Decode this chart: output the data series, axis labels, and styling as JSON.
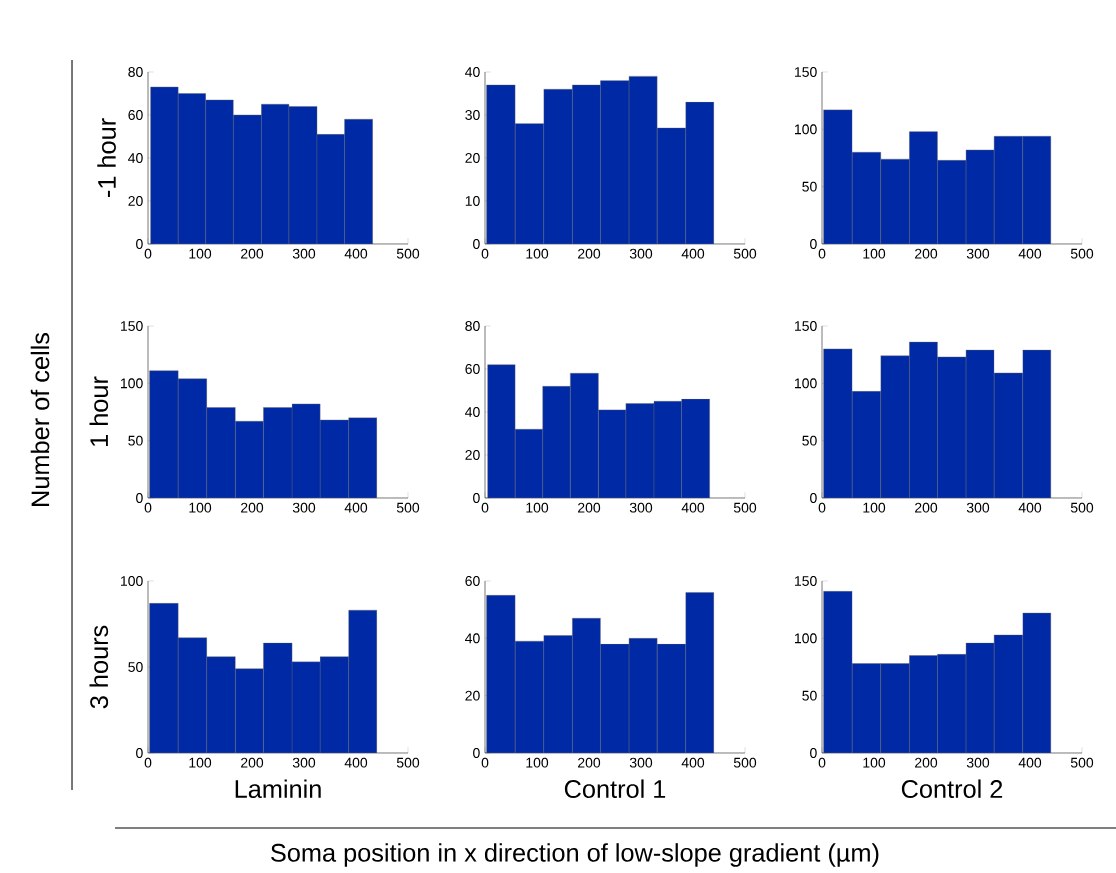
{
  "chart_data": [
    {
      "type": "histogram",
      "ylabel": "-1 hour",
      "annotations": [
        "Number of cells",
        "Soma position in x direction of low-slope gradient (µm)"
      ],
      "color": "#0029a5",
      "bins": [
        5,
        58,
        111,
        164,
        218,
        271,
        325,
        378,
        432
      ],
      "values": [
        73,
        70,
        67,
        60,
        65,
        64,
        51,
        58
      ],
      "xlim": [
        0,
        500
      ],
      "xticks": [
        0,
        100,
        200,
        300,
        400,
        500
      ],
      "ylim": [
        0,
        80
      ],
      "yticks": [
        0,
        20,
        40,
        60,
        80
      ]
    },
    {
      "type": "histogram",
      "color": "#0029a5",
      "bins": [
        3,
        58,
        113,
        168,
        222,
        277,
        331,
        386,
        440
      ],
      "values": [
        37,
        28,
        36,
        37,
        38,
        39,
        27,
        33
      ],
      "xlim": [
        0,
        500
      ],
      "xticks": [
        0,
        100,
        200,
        300,
        400,
        500
      ],
      "ylim": [
        0,
        40
      ],
      "yticks": [
        0,
        10,
        20,
        30,
        40
      ]
    },
    {
      "type": "histogram",
      "color": "#0029a5",
      "bins": [
        3,
        58,
        113,
        168,
        222,
        277,
        331,
        386,
        440
      ],
      "values": [
        117,
        80,
        74,
        98,
        73,
        82,
        94,
        94
      ],
      "xlim": [
        0,
        500
      ],
      "xticks": [
        0,
        100,
        200,
        300,
        400,
        500
      ],
      "ylim": [
        0,
        150
      ],
      "yticks": [
        0,
        50,
        100,
        150
      ]
    },
    {
      "type": "histogram",
      "ylabel": "1 hour",
      "color": "#0029a5",
      "bins": [
        3,
        58,
        113,
        168,
        222,
        277,
        331,
        386,
        440
      ],
      "values": [
        111,
        104,
        79,
        67,
        79,
        82,
        68,
        70
      ],
      "xlim": [
        0,
        500
      ],
      "xticks": [
        0,
        100,
        200,
        300,
        400,
        500
      ],
      "ylim": [
        0,
        150
      ],
      "yticks": [
        0,
        50,
        100,
        150
      ]
    },
    {
      "type": "histogram",
      "color": "#0029a5",
      "bins": [
        5,
        58,
        111,
        164,
        218,
        271,
        325,
        378,
        432
      ],
      "values": [
        62,
        32,
        52,
        58,
        41,
        44,
        45,
        46
      ],
      "xlim": [
        0,
        500
      ],
      "xticks": [
        0,
        100,
        200,
        300,
        400,
        500
      ],
      "ylim": [
        0,
        80
      ],
      "yticks": [
        0,
        20,
        40,
        60,
        80
      ]
    },
    {
      "type": "histogram",
      "color": "#0029a5",
      "bins": [
        3,
        58,
        113,
        168,
        222,
        277,
        331,
        386,
        440
      ],
      "values": [
        130,
        93,
        124,
        136,
        123,
        129,
        109,
        129
      ],
      "xlim": [
        0,
        500
      ],
      "xticks": [
        0,
        100,
        200,
        300,
        400,
        500
      ],
      "ylim": [
        0,
        150
      ],
      "yticks": [
        0,
        50,
        100,
        150
      ]
    },
    {
      "type": "histogram",
      "ylabel": "3 hours",
      "xlabel": "Laminin",
      "color": "#0029a5",
      "bins": [
        3,
        58,
        113,
        168,
        222,
        277,
        331,
        386,
        440
      ],
      "values": [
        87,
        67,
        56,
        49,
        64,
        53,
        56,
        83
      ],
      "xlim": [
        0,
        500
      ],
      "xticks": [
        0,
        100,
        200,
        300,
        400,
        500
      ],
      "ylim": [
        0,
        100
      ],
      "yticks": [
        0,
        50,
        100
      ]
    },
    {
      "type": "histogram",
      "xlabel": "Control 1",
      "color": "#0029a5",
      "bins": [
        3,
        58,
        113,
        168,
        222,
        277,
        331,
        386,
        440
      ],
      "values": [
        55,
        39,
        41,
        47,
        38,
        40,
        38,
        56
      ],
      "xlim": [
        0,
        500
      ],
      "xticks": [
        0,
        100,
        200,
        300,
        400,
        500
      ],
      "ylim": [
        0,
        60
      ],
      "yticks": [
        0,
        20,
        40,
        60
      ]
    },
    {
      "type": "histogram",
      "xlabel": "Control 2",
      "color": "#0029a5",
      "bins": [
        3,
        58,
        113,
        168,
        222,
        277,
        331,
        386,
        440
      ],
      "values": [
        141,
        78,
        78,
        85,
        86,
        96,
        103,
        122
      ],
      "xlim": [
        0,
        500
      ],
      "xticks": [
        0,
        100,
        200,
        300,
        400,
        500
      ],
      "ylim": [
        0,
        150
      ],
      "yticks": [
        0,
        50,
        100,
        150
      ]
    }
  ]
}
